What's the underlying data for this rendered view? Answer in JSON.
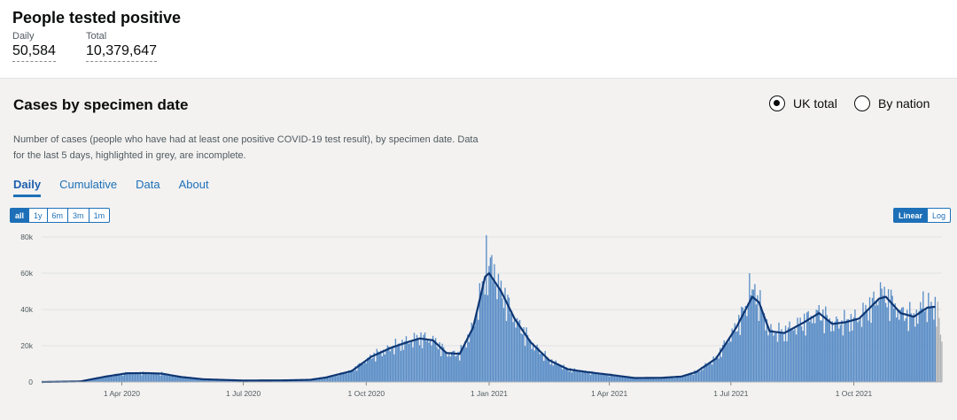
{
  "summary": {
    "title": "People tested positive",
    "daily_label": "Daily",
    "daily_value": "50,584",
    "total_label": "Total",
    "total_value": "10,379,647"
  },
  "card": {
    "title": "Cases by specimen date",
    "radio_uk": "UK total",
    "radio_nation": "By nation",
    "description": "Number of cases (people who have had at least one positive COVID-19 test result), by specimen date. Data for the last 5 days, highlighted in grey, are incomplete.",
    "tabs": [
      "Daily",
      "Cumulative",
      "Data",
      "About"
    ],
    "range_buttons": [
      "all",
      "1y",
      "6m",
      "3m",
      "1m"
    ],
    "scale_buttons": [
      "Linear",
      "Log"
    ]
  },
  "colors": {
    "bar": "#5b8ec7",
    "avg_line": "#0e3673",
    "incomplete": "#b1b4b6",
    "accent": "#1d70b8"
  },
  "chart_data": {
    "type": "bar",
    "series_type": "bar + 7-day average line",
    "ylim": [
      0,
      80000
    ],
    "y_ticks": [
      "0",
      "20k",
      "40k",
      "60k",
      "80k"
    ],
    "x_ticks": [
      "1 Apr 2020",
      "1 Jul 2020",
      "1 Oct 2020",
      "1 Jan 2021",
      "1 Apr 2021",
      "1 Jul 2021",
      "1 Oct 2021"
    ],
    "x_range": [
      "2020-02-01",
      "2021-12-06"
    ],
    "grid": true,
    "incomplete_days": 5,
    "avg_keypoints": [
      [
        "2020-02-01",
        0
      ],
      [
        "2020-03-01",
        300
      ],
      [
        "2020-03-20",
        3000
      ],
      [
        "2020-04-05",
        4800
      ],
      [
        "2020-04-20",
        4900
      ],
      [
        "2020-05-01",
        4600
      ],
      [
        "2020-05-15",
        2800
      ],
      [
        "2020-06-01",
        1500
      ],
      [
        "2020-07-01",
        800
      ],
      [
        "2020-08-01",
        900
      ],
      [
        "2020-08-20",
        1200
      ],
      [
        "2020-09-01",
        2500
      ],
      [
        "2020-09-20",
        6000
      ],
      [
        "2020-10-05",
        14000
      ],
      [
        "2020-10-20",
        19000
      ],
      [
        "2020-11-01",
        22000
      ],
      [
        "2020-11-10",
        24000
      ],
      [
        "2020-11-20",
        23000
      ],
      [
        "2020-11-30",
        16000
      ],
      [
        "2020-12-10",
        15500
      ],
      [
        "2020-12-20",
        30000
      ],
      [
        "2020-12-29",
        58000
      ],
      [
        "2021-01-01",
        60000
      ],
      [
        "2021-01-10",
        50000
      ],
      [
        "2021-01-20",
        35000
      ],
      [
        "2021-02-01",
        22000
      ],
      [
        "2021-02-15",
        12000
      ],
      [
        "2021-03-01",
        7000
      ],
      [
        "2021-03-15",
        5500
      ],
      [
        "2021-04-01",
        4000
      ],
      [
        "2021-04-20",
        2200
      ],
      [
        "2021-05-10",
        2300
      ],
      [
        "2021-05-25",
        3000
      ],
      [
        "2021-06-05",
        5500
      ],
      [
        "2021-06-20",
        13000
      ],
      [
        "2021-07-05",
        30000
      ],
      [
        "2021-07-17",
        47000
      ],
      [
        "2021-07-22",
        44000
      ],
      [
        "2021-07-30",
        28000
      ],
      [
        "2021-08-10",
        27000
      ],
      [
        "2021-08-25",
        33000
      ],
      [
        "2021-09-05",
        38000
      ],
      [
        "2021-09-15",
        32000
      ],
      [
        "2021-09-25",
        33000
      ],
      [
        "2021-10-05",
        35000
      ],
      [
        "2021-10-20",
        46000
      ],
      [
        "2021-10-25",
        47000
      ],
      [
        "2021-11-05",
        38000
      ],
      [
        "2021-11-15",
        36000
      ],
      [
        "2021-11-25",
        41000
      ],
      [
        "2021-12-01",
        41500
      ]
    ],
    "bar_spikes": [
      [
        "2020-12-30",
        81000
      ],
      [
        "2021-01-03",
        70000
      ],
      [
        "2021-01-05",
        65000
      ],
      [
        "2021-07-15",
        60000
      ],
      [
        "2021-07-19",
        54000
      ],
      [
        "2021-10-21",
        55000
      ],
      [
        "2021-11-22",
        50000
      ],
      [
        "2021-12-03",
        54000
      ]
    ]
  }
}
